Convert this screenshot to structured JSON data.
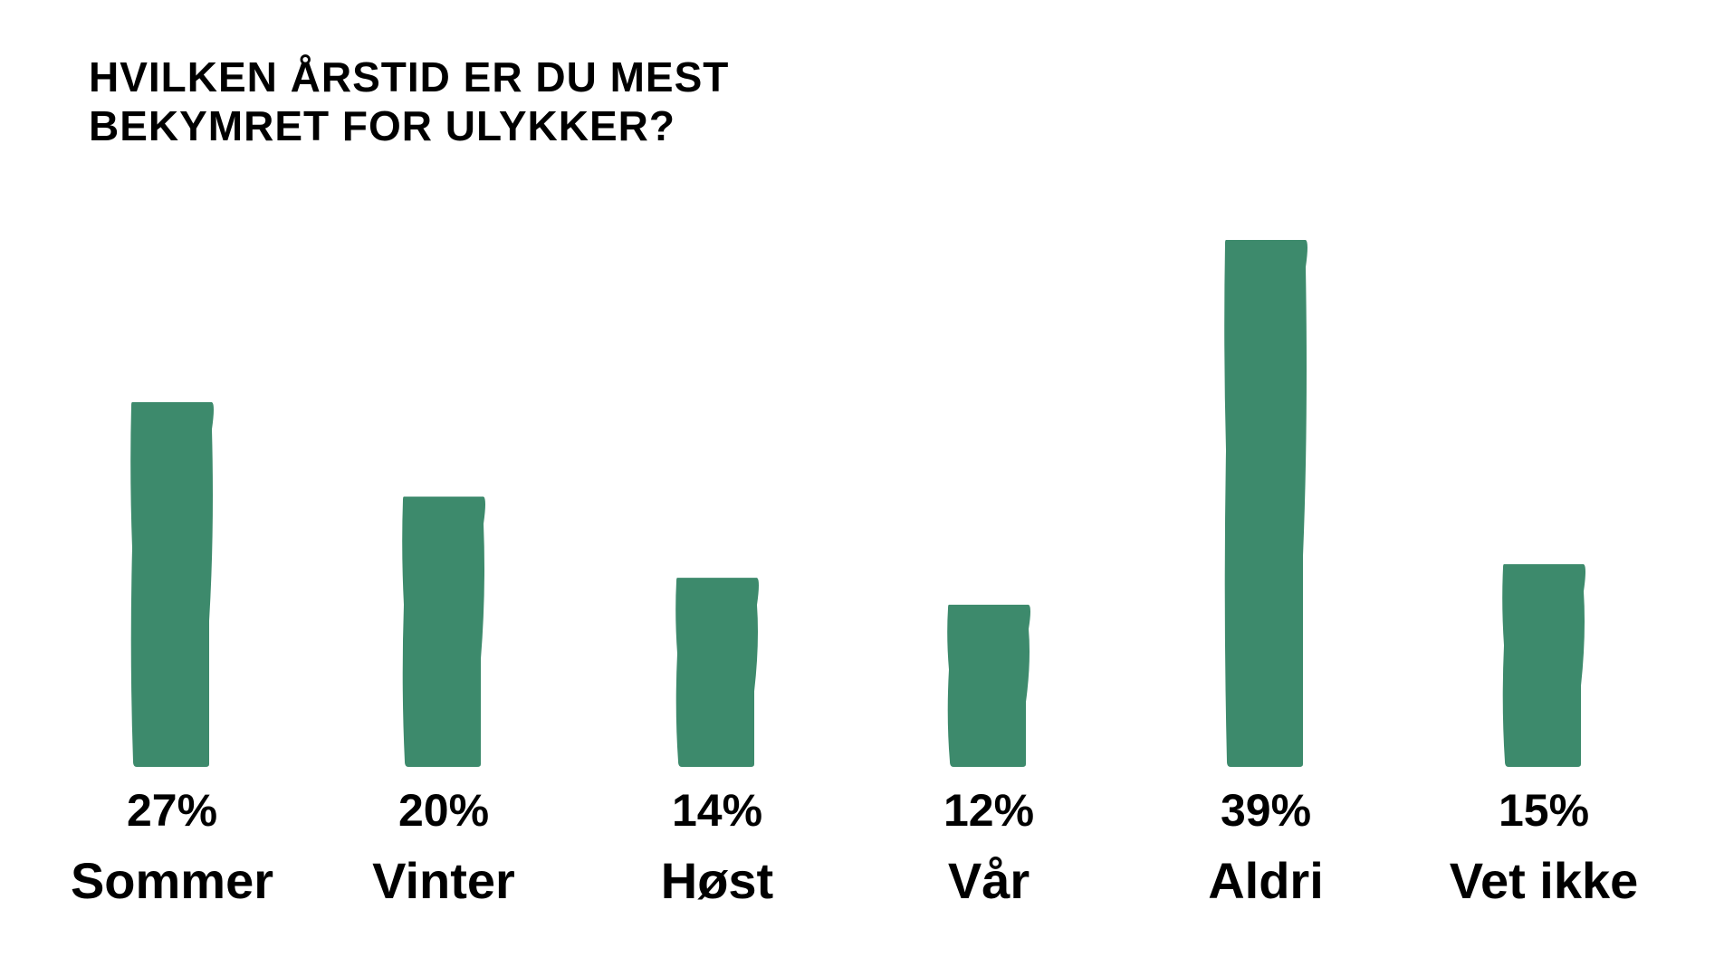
{
  "chart_data": {
    "type": "bar",
    "title_lines": [
      "HVILKEN ÅRSTID ER DU MEST",
      "BEKYMRET FOR ULYKKER?"
    ],
    "categories": [
      "Sommer",
      "Vinter",
      "Høst",
      "Vår",
      "Aldri",
      "Vet ikke"
    ],
    "values": [
      27,
      20,
      14,
      12,
      39,
      15
    ],
    "value_labels": [
      "27%",
      "20%",
      "14%",
      "12%",
      "39%",
      "15%"
    ],
    "ylim": [
      0,
      39
    ],
    "grid": false,
    "legend": "none",
    "bar_color": "#3d8a6c"
  }
}
